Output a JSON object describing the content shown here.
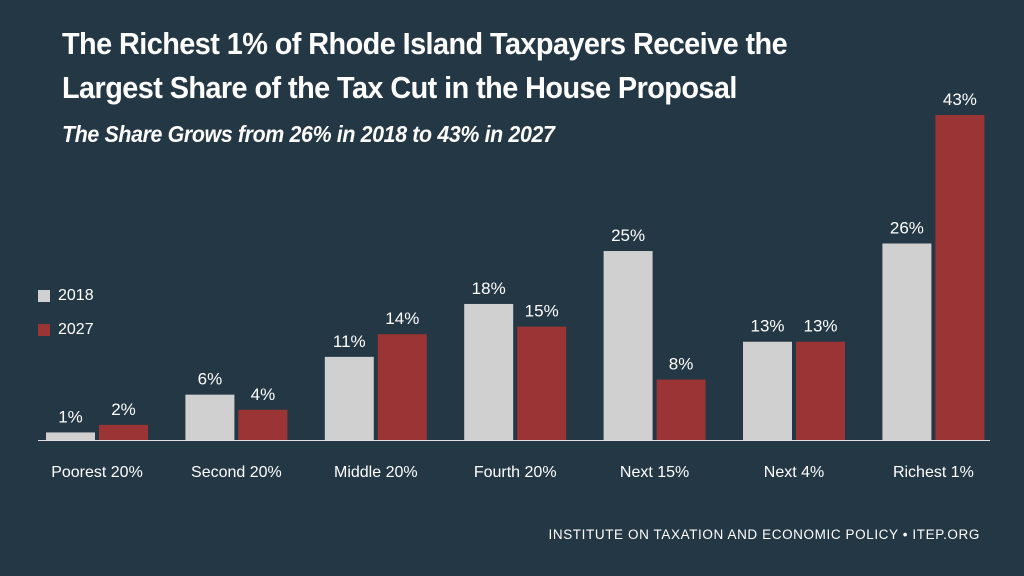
{
  "chart_data": {
    "type": "bar",
    "title_line1": "The Richest 1% of Rhode Island Taxpayers Receive the",
    "title_line2": "Largest Share of the Tax Cut in the House Proposal",
    "subtitle": "The Share Grows from 26% in 2018 to 43% in 2027",
    "categories": [
      "Poorest 20%",
      "Second 20%",
      "Middle 20%",
      "Fourth 20%",
      "Next 15%",
      "Next 4%",
      "Richest 1%"
    ],
    "series": [
      {
        "name": "2018",
        "values": [
          1,
          6,
          11,
          18,
          25,
          13,
          26
        ],
        "labels": [
          "1%",
          "6%",
          "11%",
          "18%",
          "25%",
          "13%",
          "26%"
        ],
        "color": "#d0d0d0"
      },
      {
        "name": "2027",
        "values": [
          2,
          4,
          14,
          15,
          8,
          13,
          43
        ],
        "labels": [
          "2%",
          "4%",
          "14%",
          "15%",
          "8%",
          "13%",
          "43%"
        ],
        "color": "#9b3434"
      }
    ],
    "ylim": [
      0,
      43
    ],
    "legend_position": "left",
    "grid": false
  },
  "colors": {
    "background": "#243745",
    "baseline": "#e0e0e0"
  },
  "source": "INSTITUTE ON TAXATION AND ECONOMIC POLICY • ITEP.ORG"
}
